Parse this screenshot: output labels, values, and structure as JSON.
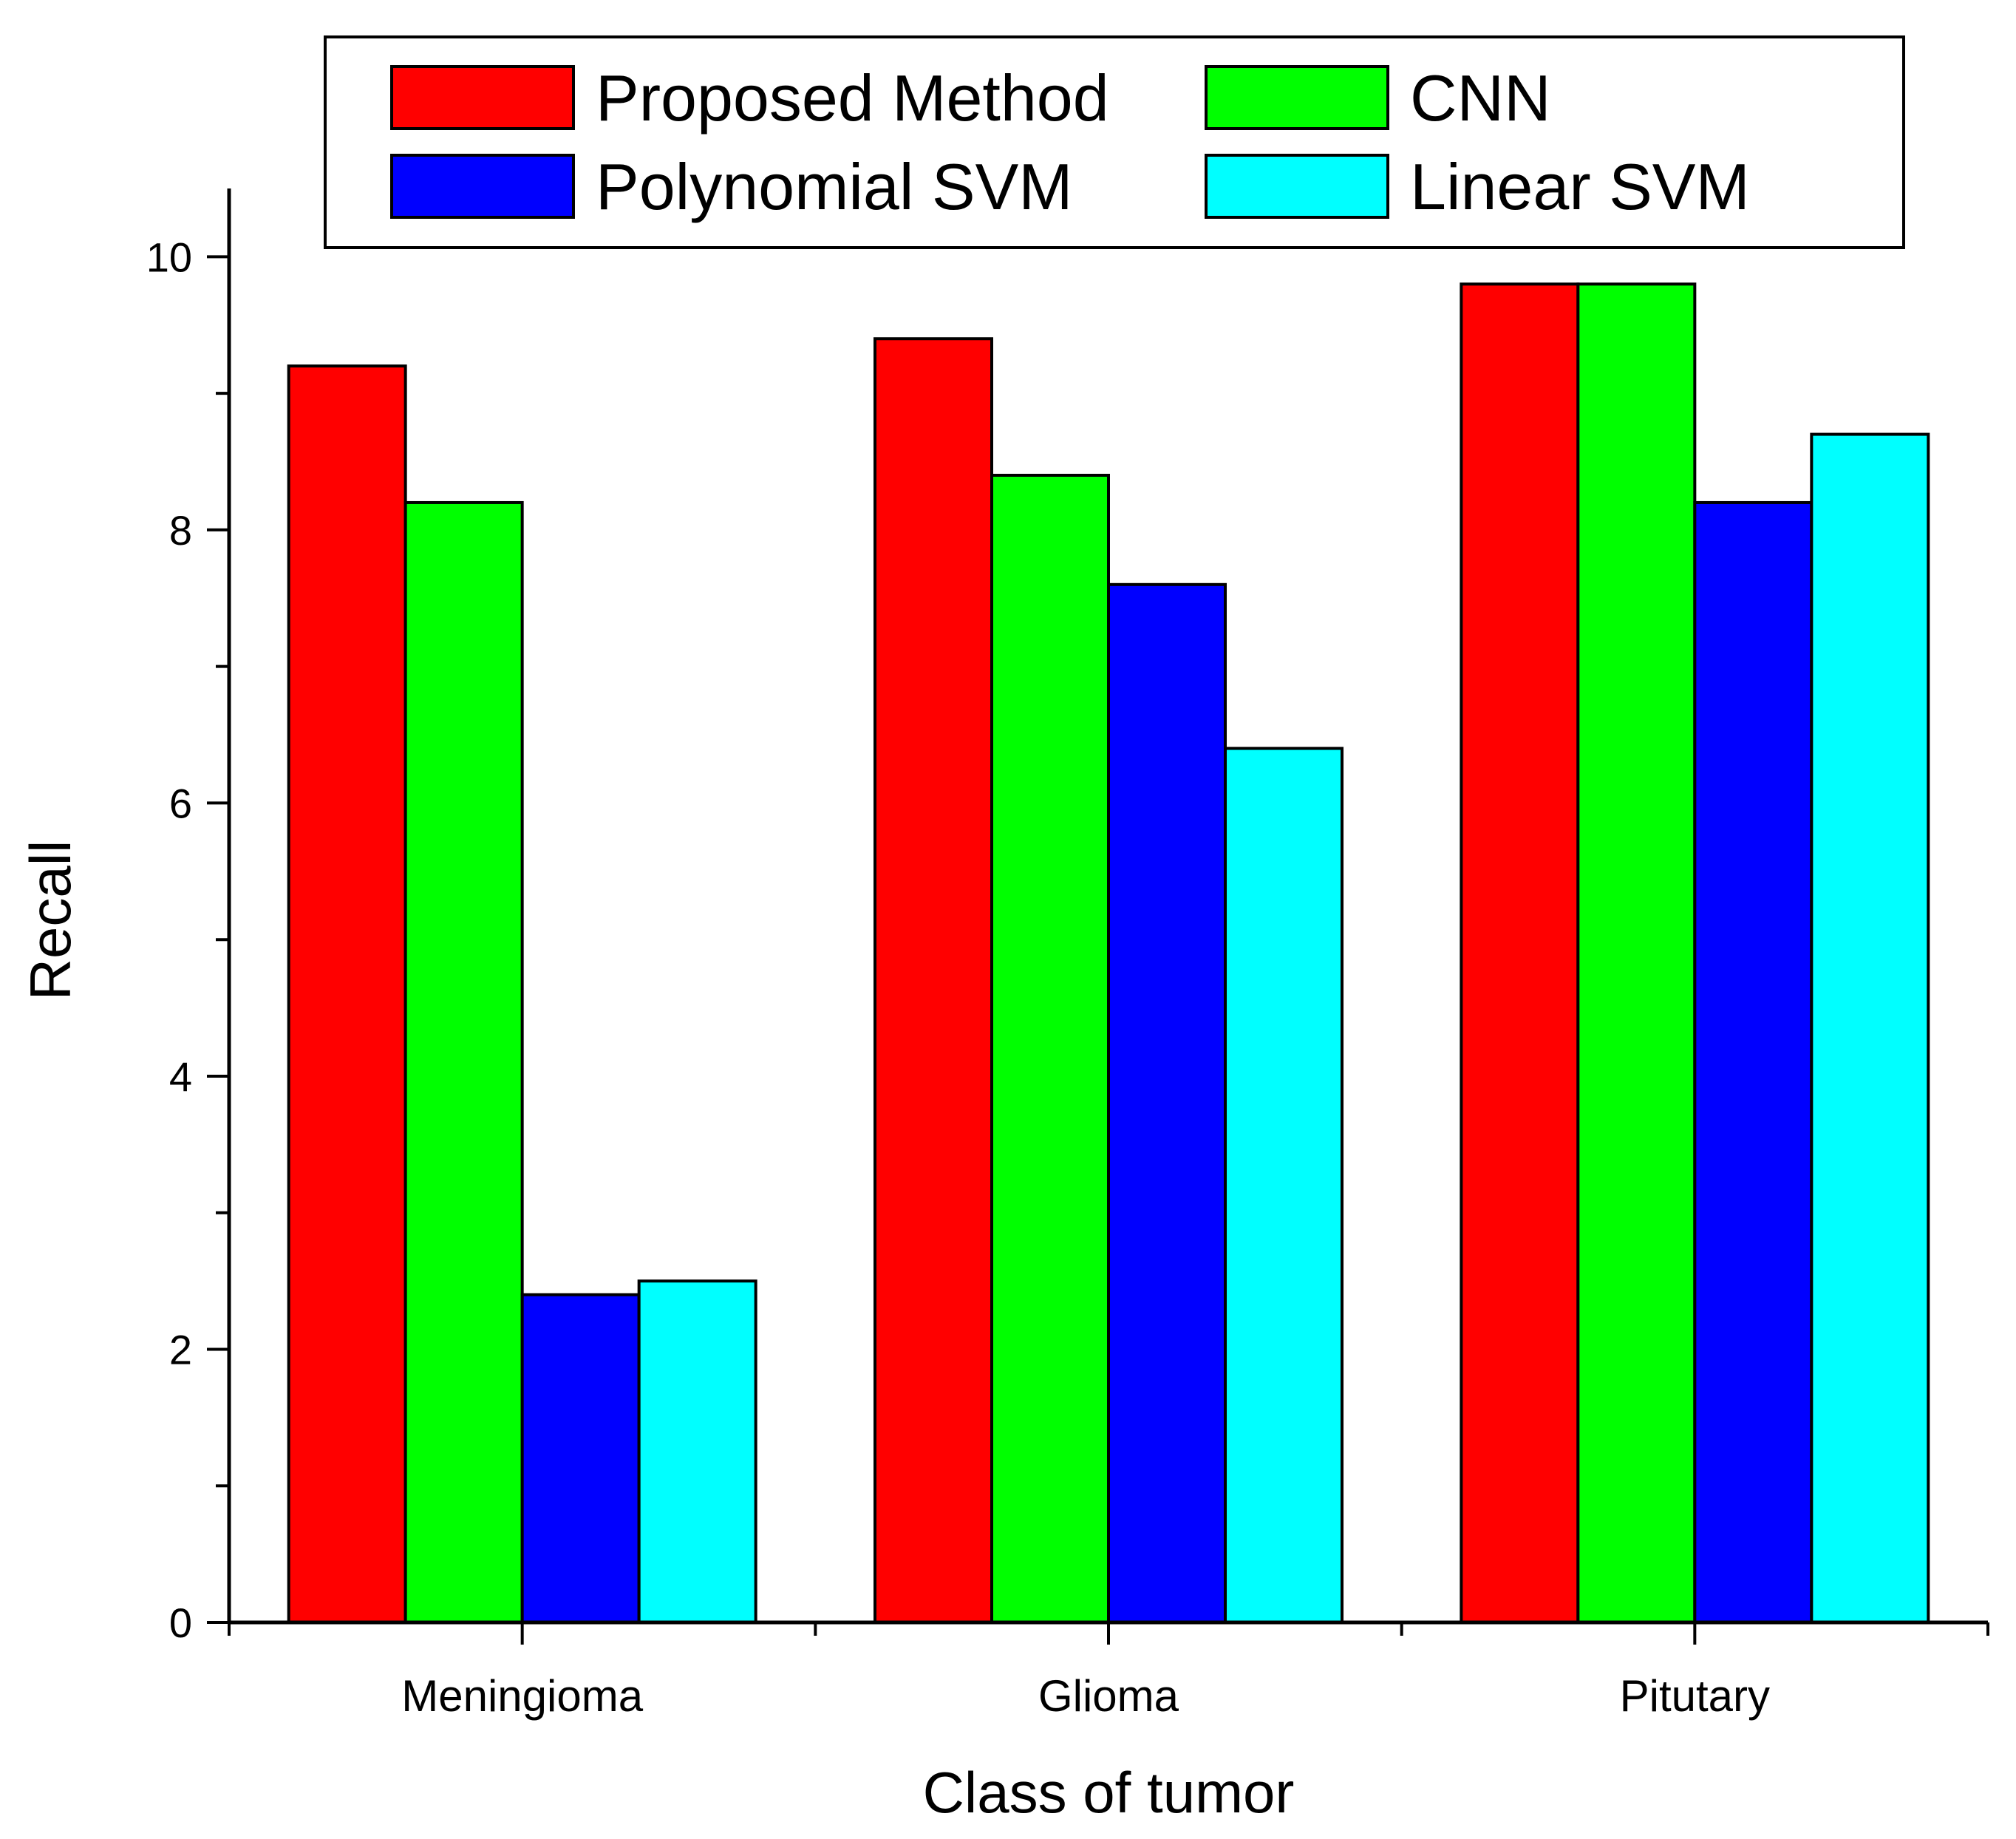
{
  "chart_data": {
    "type": "bar",
    "title": "",
    "xlabel": "Class of tumor",
    "ylabel": "Recall",
    "categories": [
      "Meningioma",
      "Glioma",
      "Pitutary"
    ],
    "series": [
      {
        "name": "Proposed Method",
        "color": "#ff0000",
        "values": [
          9.2,
          9.4,
          9.8
        ]
      },
      {
        "name": "CNN",
        "color": "#00ff00",
        "values": [
          8.2,
          8.4,
          9.8
        ]
      },
      {
        "name": "Polynomial SVM",
        "color": "#0000ff",
        "values": [
          2.4,
          7.6,
          8.2
        ]
      },
      {
        "name": "Linear SVM",
        "color": "#00ffff",
        "values": [
          2.5,
          6.4,
          8.7
        ]
      }
    ],
    "ylim": [
      0,
      10.5
    ],
    "yticks": [
      "0",
      "2",
      "4",
      "6",
      "8",
      "10"
    ],
    "grid": false,
    "legend_position": "top"
  }
}
